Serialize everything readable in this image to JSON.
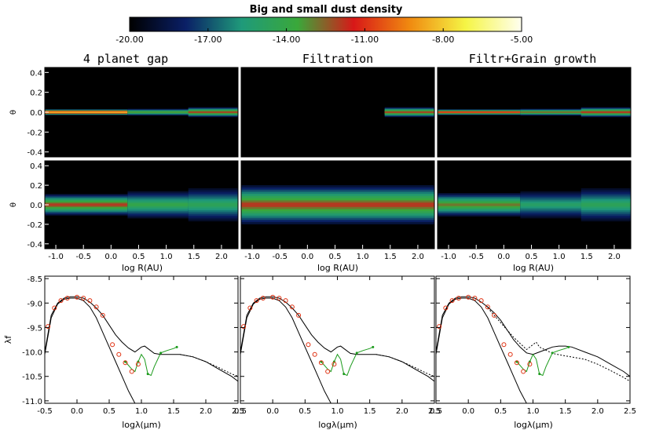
{
  "colorbar": {
    "title": "Big and small dust density",
    "ticks": [
      "-20.00",
      "-17.00",
      "-14.00",
      "-11.00",
      "-8.00",
      "-5.00"
    ],
    "range": [
      -20,
      -5
    ],
    "palette": [
      "#000000",
      "#0a1f66",
      "#1f9a7a",
      "#3aa83a",
      "#d81818",
      "#f08a10",
      "#f5f545",
      "#fffff0"
    ]
  },
  "density_panels": {
    "titles": [
      "4 planet gap",
      "Filtration",
      "Filtr+Grain growth"
    ],
    "theta_label": "θ",
    "theta_ticks": [
      "0.4",
      "0.2",
      "0.0",
      "-0.2",
      "-0.4"
    ],
    "r_label": "log R(AU)",
    "r_ticks": [
      "-1.0",
      "-0.5",
      "0.0",
      "0.5",
      "1.0",
      "1.5",
      "2.0"
    ]
  },
  "sed_panels": {
    "ylabel": "λf",
    "xlabel": "logλ(μm)",
    "y_ticks": [
      "-8.5",
      "-9.0",
      "-9.5",
      "-10.0",
      "-10.5",
      "-11.0"
    ],
    "x_ticks_first": [
      "-0.5",
      "0.0",
      "0.5",
      "1.0",
      "1.5",
      "2.0",
      "2.5"
    ],
    "x_ticks_middle": [
      "0.5",
      "0.0",
      "0.5",
      "1.0",
      "1.5",
      "2.0",
      "2.5"
    ]
  },
  "chart_data": [
    {
      "type": "heatmap",
      "panel": "4 planet gap (top row)",
      "x_range": [
        -1.2,
        2.3
      ],
      "y_range": [
        -0.45,
        0.45
      ],
      "zones": [
        {
          "r": [
            -1.2,
            0.3
          ],
          "half_height": 0.03,
          "peak": -6.5
        },
        {
          "r": [
            0.3,
            1.4
          ],
          "half_height": 0.035,
          "peak": -12.5
        },
        {
          "r": [
            1.4,
            2.3
          ],
          "half_height": 0.05,
          "peak": -11.0
        }
      ]
    },
    {
      "type": "heatmap",
      "panel": "Filtration (top row)",
      "x_range": [
        -1.2,
        2.3
      ],
      "y_range": [
        -0.45,
        0.45
      ],
      "zones": [
        {
          "r": [
            1.4,
            2.3
          ],
          "half_height": 0.05,
          "peak": -11.0
        }
      ]
    },
    {
      "type": "heatmap",
      "panel": "Filtr+Grain growth (top row)",
      "x_range": [
        -1.2,
        2.3
      ],
      "y_range": [
        -0.45,
        0.45
      ],
      "zones": [
        {
          "r": [
            -1.2,
            0.3
          ],
          "half_height": 0.03,
          "peak": -9.0
        },
        {
          "r": [
            0.3,
            1.4
          ],
          "half_height": 0.035,
          "peak": -11.5
        },
        {
          "r": [
            1.4,
            2.3
          ],
          "half_height": 0.05,
          "peak": -10.8
        }
      ]
    },
    {
      "type": "heatmap",
      "panel": "4 planet gap (bottom row)",
      "x_range": [
        -1.2,
        2.3
      ],
      "y_range": [
        -0.45,
        0.45
      ],
      "zones": [
        {
          "r": [
            -1.2,
            0.3
          ],
          "half_height": 0.11,
          "peak": -11.0
        },
        {
          "r": [
            0.3,
            1.4
          ],
          "half_height": 0.14,
          "peak": -13.5
        },
        {
          "r": [
            1.4,
            2.3
          ],
          "half_height": 0.17,
          "peak": -14.0
        }
      ]
    },
    {
      "type": "heatmap",
      "panel": "Filtration (bottom row)",
      "x_range": [
        -1.2,
        2.3
      ],
      "y_range": [
        -0.45,
        0.45
      ],
      "zones": [
        {
          "r": [
            -1.2,
            2.3
          ],
          "half_height": 0.2,
          "peak": -11.0
        }
      ]
    },
    {
      "type": "heatmap",
      "panel": "Filtr+Grain growth (bottom row)",
      "x_range": [
        -1.2,
        2.3
      ],
      "y_range": [
        -0.45,
        0.45
      ],
      "zones": [
        {
          "r": [
            -1.2,
            0.3
          ],
          "half_height": 0.12,
          "peak": -12.0
        },
        {
          "r": [
            0.3,
            1.4
          ],
          "half_height": 0.14,
          "peak": -14.5
        },
        {
          "r": [
            1.4,
            2.3
          ],
          "half_height": 0.17,
          "peak": -14.0
        }
      ]
    },
    {
      "type": "line",
      "panel": "SED 1",
      "xlim": [
        -0.5,
        2.5
      ],
      "ylim": [
        -11.05,
        -8.45
      ],
      "series": [
        {
          "style": "solid",
          "color": "#000000",
          "x": [
            -0.5,
            -0.4,
            -0.3,
            -0.2,
            -0.1,
            0.0,
            0.1,
            0.2,
            0.3,
            0.4,
            0.5,
            0.6,
            0.7,
            0.8,
            0.9,
            1.0,
            1.05,
            1.1,
            1.2,
            1.3,
            1.4,
            1.5,
            1.6,
            1.8,
            2.0,
            2.2,
            2.4,
            2.5
          ],
          "y": [
            -10.0,
            -9.25,
            -9.0,
            -8.9,
            -8.87,
            -8.87,
            -8.9,
            -8.98,
            -9.1,
            -9.25,
            -9.45,
            -9.65,
            -9.8,
            -9.92,
            -10.0,
            -9.9,
            -9.88,
            -9.93,
            -10.03,
            -10.05,
            -10.05,
            -10.05,
            -10.05,
            -10.1,
            -10.2,
            -10.35,
            -10.5,
            -10.6
          ]
        },
        {
          "style": "solid",
          "color": "#000000",
          "x": [
            -0.5,
            -0.4,
            -0.3,
            -0.2,
            -0.1,
            0.0,
            0.1,
            0.2,
            0.3,
            0.4,
            0.5,
            0.6,
            0.7,
            0.8,
            0.9,
            1.0
          ],
          "y": [
            -10.05,
            -9.3,
            -9.02,
            -8.92,
            -8.9,
            -8.9,
            -8.95,
            -9.08,
            -9.3,
            -9.6,
            -9.9,
            -10.2,
            -10.5,
            -10.8,
            -11.05,
            -11.3
          ]
        },
        {
          "style": "dotted",
          "color": "#000000",
          "x": [
            1.6,
            1.8,
            2.0,
            2.2,
            2.4,
            2.5
          ],
          "y": [
            -10.05,
            -10.1,
            -10.2,
            -10.32,
            -10.45,
            -10.5
          ]
        },
        {
          "style": "solid",
          "color": "#1a9a1a",
          "x": [
            0.75,
            0.85,
            0.9,
            0.95,
            1.0,
            1.05,
            1.1,
            1.15,
            1.2,
            1.3,
            1.4,
            1.5,
            1.55
          ],
          "y": [
            -10.2,
            -10.35,
            -10.4,
            -10.2,
            -10.05,
            -10.15,
            -10.45,
            -10.48,
            -10.3,
            -10.02,
            -9.97,
            -9.93,
            -9.9
          ]
        }
      ],
      "markers": {
        "x": [
          -0.45,
          -0.35,
          -0.25,
          -0.15,
          0.0,
          0.1,
          0.2,
          0.3,
          0.4,
          0.55,
          0.65,
          0.75,
          0.85,
          0.95
        ],
        "y": [
          -9.48,
          -9.1,
          -8.95,
          -8.9,
          -8.88,
          -8.9,
          -8.95,
          -9.08,
          -9.25,
          -9.85,
          -10.05,
          -10.22,
          -10.4,
          -10.25
        ]
      }
    },
    {
      "type": "line",
      "panel": "SED 2",
      "xlim": [
        -0.5,
        2.5
      ],
      "ylim": [
        -11.05,
        -8.45
      ],
      "series": [
        {
          "style": "solid",
          "color": "#000000",
          "x": [
            -0.5,
            -0.4,
            -0.3,
            -0.2,
            -0.1,
            0.0,
            0.1,
            0.2,
            0.3,
            0.4,
            0.5,
            0.6,
            0.7,
            0.8,
            0.9,
            1.0,
            1.05,
            1.1,
            1.2,
            1.3,
            1.4,
            1.5,
            1.6,
            1.8,
            2.0,
            2.2,
            2.4,
            2.5
          ],
          "y": [
            -10.0,
            -9.25,
            -9.0,
            -8.9,
            -8.87,
            -8.87,
            -8.9,
            -8.98,
            -9.1,
            -9.25,
            -9.45,
            -9.65,
            -9.8,
            -9.92,
            -10.0,
            -9.9,
            -9.88,
            -9.93,
            -10.03,
            -10.05,
            -10.05,
            -10.05,
            -10.05,
            -10.1,
            -10.2,
            -10.35,
            -10.5,
            -10.6
          ]
        },
        {
          "style": "solid",
          "color": "#000000",
          "x": [
            -0.5,
            -0.4,
            -0.3,
            -0.2,
            -0.1,
            0.0,
            0.1,
            0.2,
            0.3,
            0.4,
            0.5,
            0.6,
            0.7,
            0.8,
            0.9,
            1.0
          ],
          "y": [
            -10.05,
            -9.3,
            -9.02,
            -8.92,
            -8.9,
            -8.9,
            -8.95,
            -9.08,
            -9.3,
            -9.6,
            -9.9,
            -10.2,
            -10.5,
            -10.8,
            -11.05,
            -11.3
          ]
        },
        {
          "style": "dotted",
          "color": "#000000",
          "x": [
            1.6,
            1.8,
            2.0,
            2.2,
            2.4,
            2.5
          ],
          "y": [
            -10.05,
            -10.1,
            -10.2,
            -10.32,
            -10.45,
            -10.5
          ]
        },
        {
          "style": "solid",
          "color": "#1a9a1a",
          "x": [
            0.75,
            0.85,
            0.9,
            0.95,
            1.0,
            1.05,
            1.1,
            1.15,
            1.2,
            1.3,
            1.4,
            1.5,
            1.55
          ],
          "y": [
            -10.2,
            -10.35,
            -10.4,
            -10.2,
            -10.05,
            -10.15,
            -10.45,
            -10.48,
            -10.3,
            -10.02,
            -9.97,
            -9.93,
            -9.9
          ]
        }
      ],
      "markers": {
        "x": [
          -0.45,
          -0.35,
          -0.25,
          -0.15,
          0.0,
          0.1,
          0.2,
          0.3,
          0.4,
          0.55,
          0.65,
          0.75,
          0.85,
          0.95
        ],
        "y": [
          -9.48,
          -9.1,
          -8.95,
          -8.9,
          -8.88,
          -8.9,
          -8.95,
          -9.08,
          -9.25,
          -9.85,
          -10.05,
          -10.22,
          -10.4,
          -10.25
        ]
      }
    },
    {
      "type": "line",
      "panel": "SED 3",
      "xlim": [
        -0.5,
        2.5
      ],
      "ylim": [
        -11.05,
        -8.45
      ],
      "series": [
        {
          "style": "solid",
          "color": "#000000",
          "x": [
            -0.5,
            -0.4,
            -0.3,
            -0.2,
            -0.1,
            0.0,
            0.1,
            0.2,
            0.3,
            0.4,
            0.5,
            0.6,
            0.7,
            0.8,
            0.9,
            1.0,
            1.1,
            1.2,
            1.3,
            1.4,
            1.5,
            1.6,
            1.8,
            2.0,
            2.2,
            2.4,
            2.5
          ],
          "y": [
            -10.0,
            -9.25,
            -9.0,
            -8.9,
            -8.87,
            -8.87,
            -8.9,
            -8.98,
            -9.08,
            -9.2,
            -9.35,
            -9.55,
            -9.75,
            -9.9,
            -10.02,
            -10.05,
            -10.0,
            -9.95,
            -9.9,
            -9.88,
            -9.88,
            -9.9,
            -10.0,
            -10.1,
            -10.25,
            -10.4,
            -10.5
          ]
        },
        {
          "style": "solid",
          "color": "#000000",
          "x": [
            -0.5,
            -0.4,
            -0.3,
            -0.2,
            -0.1,
            0.0,
            0.1,
            0.2,
            0.3,
            0.4,
            0.5,
            0.6,
            0.7,
            0.8,
            0.9,
            1.0
          ],
          "y": [
            -10.05,
            -9.3,
            -9.02,
            -8.92,
            -8.9,
            -8.9,
            -8.95,
            -9.08,
            -9.3,
            -9.6,
            -9.9,
            -10.2,
            -10.5,
            -10.8,
            -11.05,
            -11.3
          ]
        },
        {
          "style": "dotted",
          "color": "#000000",
          "x": [
            0.3,
            0.5,
            0.7,
            0.9,
            1.0,
            1.05,
            1.1,
            1.3,
            1.5,
            1.8,
            2.0,
            2.2,
            2.4,
            2.5
          ],
          "y": [
            -9.1,
            -9.4,
            -9.7,
            -9.95,
            -9.85,
            -9.8,
            -9.9,
            -10.03,
            -10.08,
            -10.15,
            -10.25,
            -10.38,
            -10.52,
            -10.6
          ]
        },
        {
          "style": "solid",
          "color": "#1a9a1a",
          "x": [
            0.75,
            0.85,
            0.9,
            0.95,
            1.0,
            1.05,
            1.1,
            1.15,
            1.2,
            1.3,
            1.4,
            1.5,
            1.55
          ],
          "y": [
            -10.2,
            -10.35,
            -10.4,
            -10.2,
            -10.05,
            -10.15,
            -10.45,
            -10.48,
            -10.3,
            -10.02,
            -9.97,
            -9.93,
            -9.9
          ]
        }
      ],
      "markers": {
        "x": [
          -0.45,
          -0.35,
          -0.25,
          -0.15,
          0.0,
          0.1,
          0.2,
          0.3,
          0.4,
          0.55,
          0.65,
          0.75,
          0.85,
          0.95
        ],
        "y": [
          -9.48,
          -9.1,
          -8.95,
          -8.9,
          -8.88,
          -8.9,
          -8.95,
          -9.08,
          -9.25,
          -9.85,
          -10.05,
          -10.22,
          -10.4,
          -10.25
        ]
      }
    }
  ]
}
